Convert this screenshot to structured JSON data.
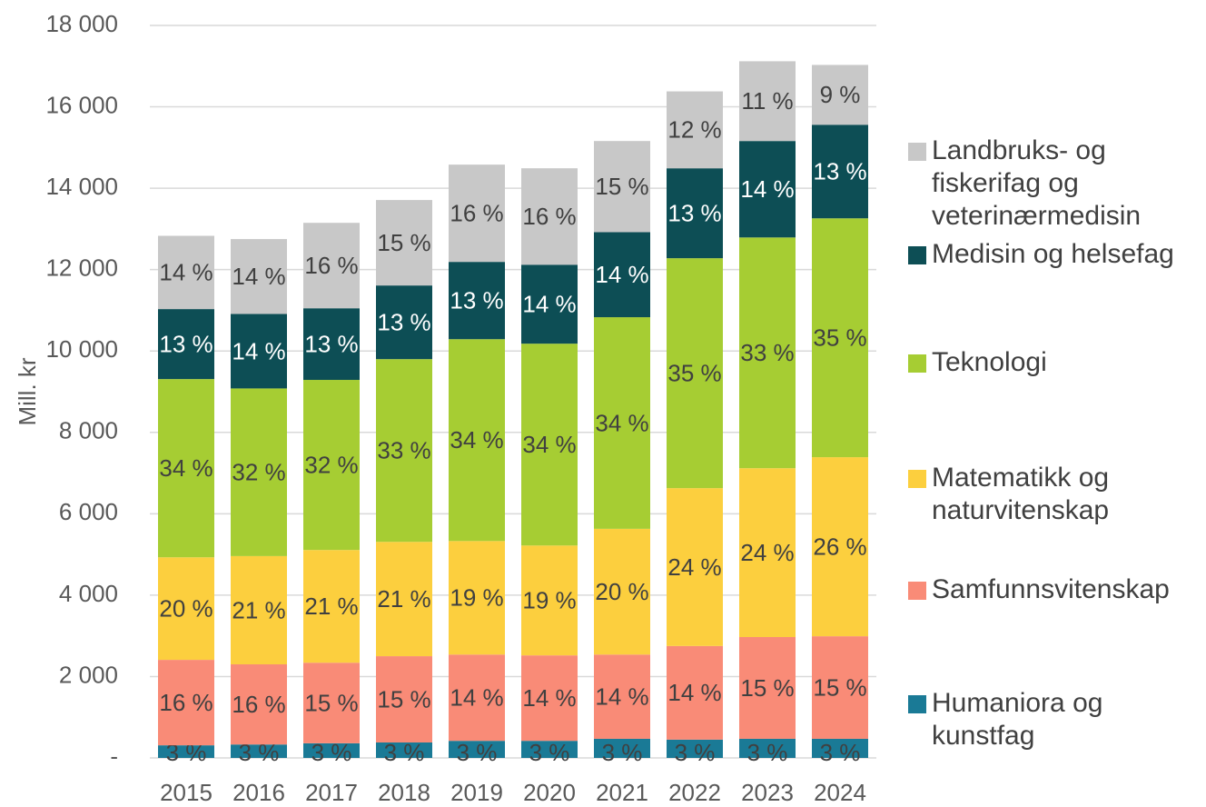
{
  "chart_data": {
    "type": "stacked-bar",
    "y_label": "Mill. kr",
    "categories": [
      "2015",
      "2016",
      "2017",
      "2018",
      "2019",
      "2020",
      "2021",
      "2022",
      "2023",
      "2024"
    ],
    "ylim": [
      0,
      18000
    ],
    "yticks": [
      {
        "value": 0,
        "label": "-"
      },
      {
        "value": 2000,
        "label": "2 000"
      },
      {
        "value": 4000,
        "label": "4 000"
      },
      {
        "value": 6000,
        "label": "6 000"
      },
      {
        "value": 8000,
        "label": "8 000"
      },
      {
        "value": 10000,
        "label": "10 000"
      },
      {
        "value": 12000,
        "label": "12 000"
      },
      {
        "value": 14000,
        "label": "14 000"
      },
      {
        "value": 16000,
        "label": "16 000"
      },
      {
        "value": 18000,
        "label": "18 000"
      }
    ],
    "grid": true,
    "legend": "right",
    "series": [
      {
        "name": "Humaniora og kunstfag",
        "color": "#1a7a96",
        "values": [
          310,
          330,
          360,
          380,
          420,
          420,
          470,
          450,
          470,
          470
        ],
        "value_labels": [
          "3 %",
          "3 %",
          "3 %",
          "3 %",
          "3 %",
          "3 %",
          "3 %",
          "3 %",
          "3 %",
          "3 %"
        ]
      },
      {
        "name": "Samfunnsvitenskap",
        "color": "#f98b77",
        "values": [
          2100,
          1970,
          1980,
          2120,
          2120,
          2100,
          2070,
          2300,
          2500,
          2520
        ],
        "value_labels": [
          "16 %",
          "16 %",
          "15 %",
          "15 %",
          "14 %",
          "14 %",
          "14 %",
          "14 %",
          "15 %",
          "15 %"
        ]
      },
      {
        "name": "Matematikk og naturvitenskap",
        "color": "#fccf3e",
        "values": [
          2520,
          2660,
          2770,
          2810,
          2790,
          2700,
          3090,
          3880,
          4150,
          4400
        ],
        "value_labels": [
          "20 %",
          "21 %",
          "21 %",
          "21 %",
          "19 %",
          "19 %",
          "20 %",
          "24 %",
          "24 %",
          "26 %"
        ]
      },
      {
        "name": "Teknologi",
        "color": "#a6cd33",
        "values": [
          4380,
          4120,
          4180,
          4490,
          4960,
          4960,
          5200,
          5650,
          5670,
          5870
        ],
        "value_labels": [
          "34 %",
          "32 %",
          "32 %",
          "33 %",
          "34 %",
          "34 %",
          "34 %",
          "35 %",
          "33 %",
          "35 %"
        ]
      },
      {
        "name": "Medisin og helsefag",
        "color": "#0d4e55",
        "values": [
          1720,
          1830,
          1760,
          1810,
          1900,
          1940,
          2090,
          2210,
          2370,
          2300
        ],
        "value_labels": [
          "13 %",
          "14 %",
          "13 %",
          "13 %",
          "13 %",
          "14 %",
          "14 %",
          "13 %",
          "14 %",
          "13 %"
        ]
      },
      {
        "name": "Landbruks- og fiskerifag og veterinærmedisin",
        "color": "#c8c8c8",
        "values": [
          1800,
          1840,
          2100,
          2100,
          2390,
          2370,
          2240,
          1890,
          1960,
          1470
        ],
        "value_labels": [
          "14 %",
          "14 %",
          "16 %",
          "15 %",
          "16 %",
          "16 %",
          "15 %",
          "12 %",
          "11 %",
          "9 %"
        ]
      }
    ]
  }
}
